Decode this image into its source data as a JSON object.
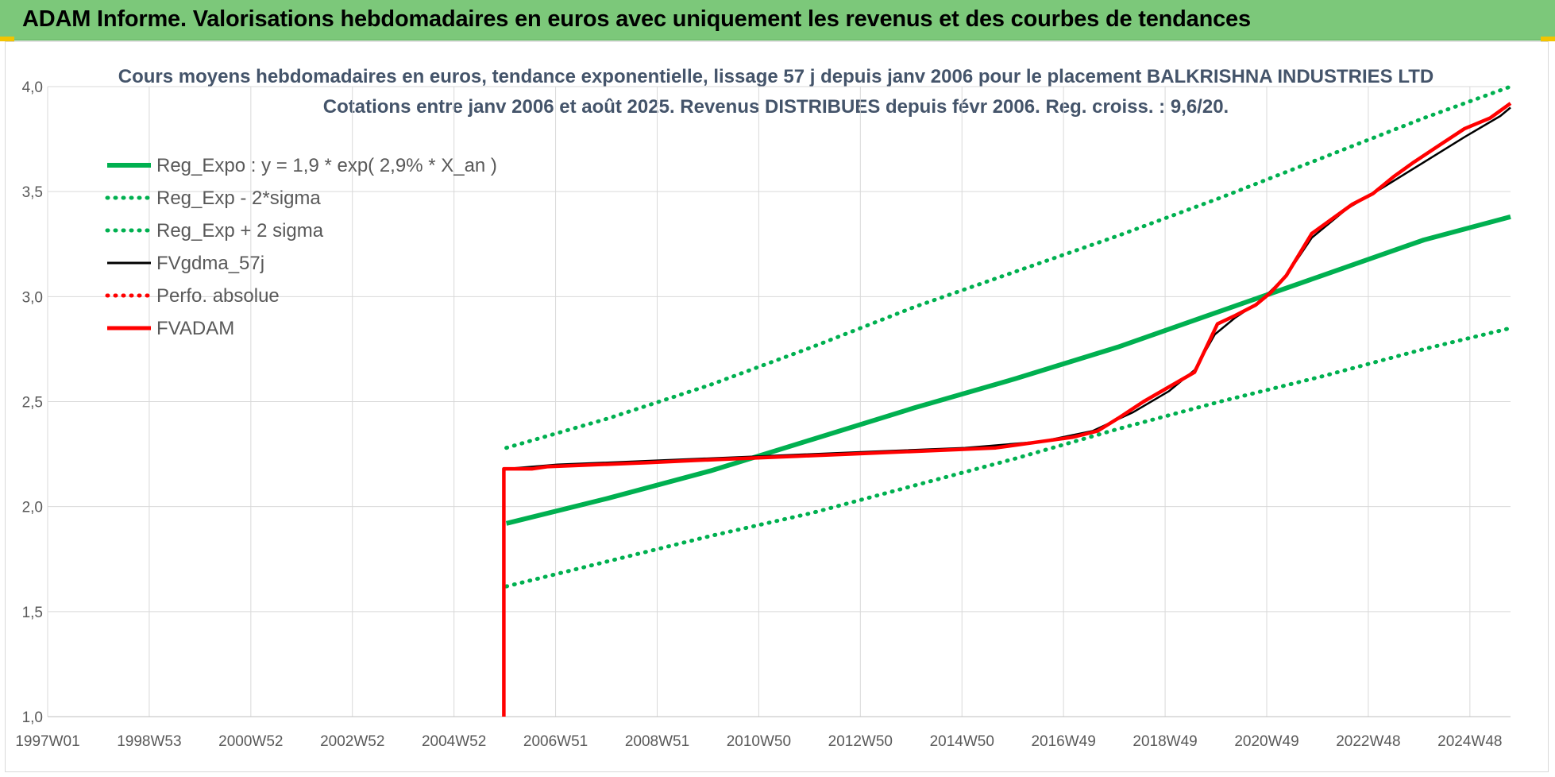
{
  "banner": {
    "title": "ADAM Informe. Valorisations hebdomadaires en euros avec uniquement les revenus et des courbes de tendances"
  },
  "chart_data": {
    "type": "line",
    "title": "Cours moyens hebdomadaires en euros, tendance exponentielle, lissage 57 j depuis janv 2006 pour le placement BALKRISHNA INDUSTRIES LTD",
    "subtitle": "Cotations entre janv 2006 et août 2025. Revenus DISTRIBUES depuis févr 2006. Reg. croiss. : 9,6/20.",
    "xlabel": "",
    "ylabel": "",
    "x_ticks": [
      "1997W01",
      "1998W53",
      "2000W52",
      "2002W52",
      "2004W52",
      "2006W51",
      "2008W51",
      "2010W50",
      "2012W50",
      "2014W50",
      "2016W49",
      "2018W49",
      "2020W49",
      "2022W48",
      "2024W48"
    ],
    "x_range": [
      1997.0,
      2025.7
    ],
    "y_ticks": [
      "1,0",
      "1,5",
      "2,0",
      "2,5",
      "3,0",
      "3,5",
      "4,0"
    ],
    "ylim": [
      1.0,
      4.0
    ],
    "grid": true,
    "legend_position": "top-left",
    "series": [
      {
        "name": "Reg_Expo : y = 1,9 * exp( 2,9% *  X_an )",
        "color": "#00b050",
        "style": "solid",
        "x": [
          2006.0,
          2008.0,
          2010.0,
          2012.0,
          2014.0,
          2016.0,
          2018.0,
          2020.0,
          2022.0,
          2024.0,
          2025.7
        ],
        "y": [
          1.92,
          2.04,
          2.17,
          2.32,
          2.47,
          2.61,
          2.76,
          2.93,
          3.1,
          3.27,
          3.38
        ]
      },
      {
        "name": "Reg_Exp - 2*sigma",
        "color": "#00b050",
        "style": "dotted",
        "x": [
          2006.0,
          2008.0,
          2010.0,
          2012.0,
          2014.0,
          2016.0,
          2018.0,
          2020.0,
          2022.0,
          2024.0,
          2025.7
        ],
        "y": [
          1.62,
          1.74,
          1.86,
          1.97,
          2.1,
          2.23,
          2.37,
          2.5,
          2.62,
          2.75,
          2.85
        ]
      },
      {
        "name": "Reg_Exp + 2 sigma",
        "color": "#00b050",
        "style": "dotted",
        "x": [
          2006.0,
          2008.0,
          2010.0,
          2012.0,
          2014.0,
          2016.0,
          2018.0,
          2020.0,
          2022.0,
          2024.0,
          2025.7
        ],
        "y": [
          2.28,
          2.42,
          2.58,
          2.76,
          2.95,
          3.12,
          3.29,
          3.47,
          3.66,
          3.85,
          4.0
        ]
      },
      {
        "name": "FVgdma_57j",
        "color": "#000000",
        "style": "solid",
        "x": [
          2006.0,
          2007.0,
          2009.0,
          2011.0,
          2013.0,
          2015.0,
          2016.5,
          2017.5,
          2018.3,
          2019.0,
          2019.5,
          2019.9,
          2020.3,
          2020.8,
          2021.3,
          2021.8,
          2022.5,
          2023.2,
          2024.0,
          2024.8,
          2025.5,
          2025.7
        ],
        "y": [
          2.18,
          2.2,
          2.22,
          2.24,
          2.26,
          2.28,
          2.31,
          2.36,
          2.45,
          2.55,
          2.65,
          2.82,
          2.9,
          2.98,
          3.1,
          3.28,
          3.42,
          3.52,
          3.64,
          3.76,
          3.86,
          3.9
        ]
      },
      {
        "name": "Perfo. absolue",
        "color": "#ff0000",
        "style": "dotted",
        "x": [],
        "y": []
      },
      {
        "name": "FVADAM",
        "color": "#ff0000",
        "style": "solid",
        "x": [
          2005.95,
          2005.95,
          2006.5,
          2006.8,
          2007.8,
          2008.8,
          2009.7,
          2010.7,
          2011.7,
          2012.7,
          2013.7,
          2014.7,
          2015.6,
          2016.5,
          2017.1,
          2017.6,
          2018.0,
          2018.5,
          2019.0,
          2019.5,
          2019.95,
          2020.3,
          2020.7,
          2021.0,
          2021.3,
          2021.8,
          2022.2,
          2022.6,
          2023.0,
          2023.4,
          2023.8,
          2024.3,
          2024.8,
          2025.3,
          2025.7
        ],
        "y": [
          1.0,
          2.18,
          2.18,
          2.19,
          2.2,
          2.21,
          2.22,
          2.23,
          2.24,
          2.25,
          2.26,
          2.27,
          2.28,
          2.31,
          2.33,
          2.36,
          2.42,
          2.5,
          2.57,
          2.64,
          2.87,
          2.91,
          2.96,
          3.02,
          3.1,
          3.3,
          3.37,
          3.44,
          3.49,
          3.57,
          3.64,
          3.72,
          3.8,
          3.85,
          3.92
        ]
      }
    ]
  }
}
